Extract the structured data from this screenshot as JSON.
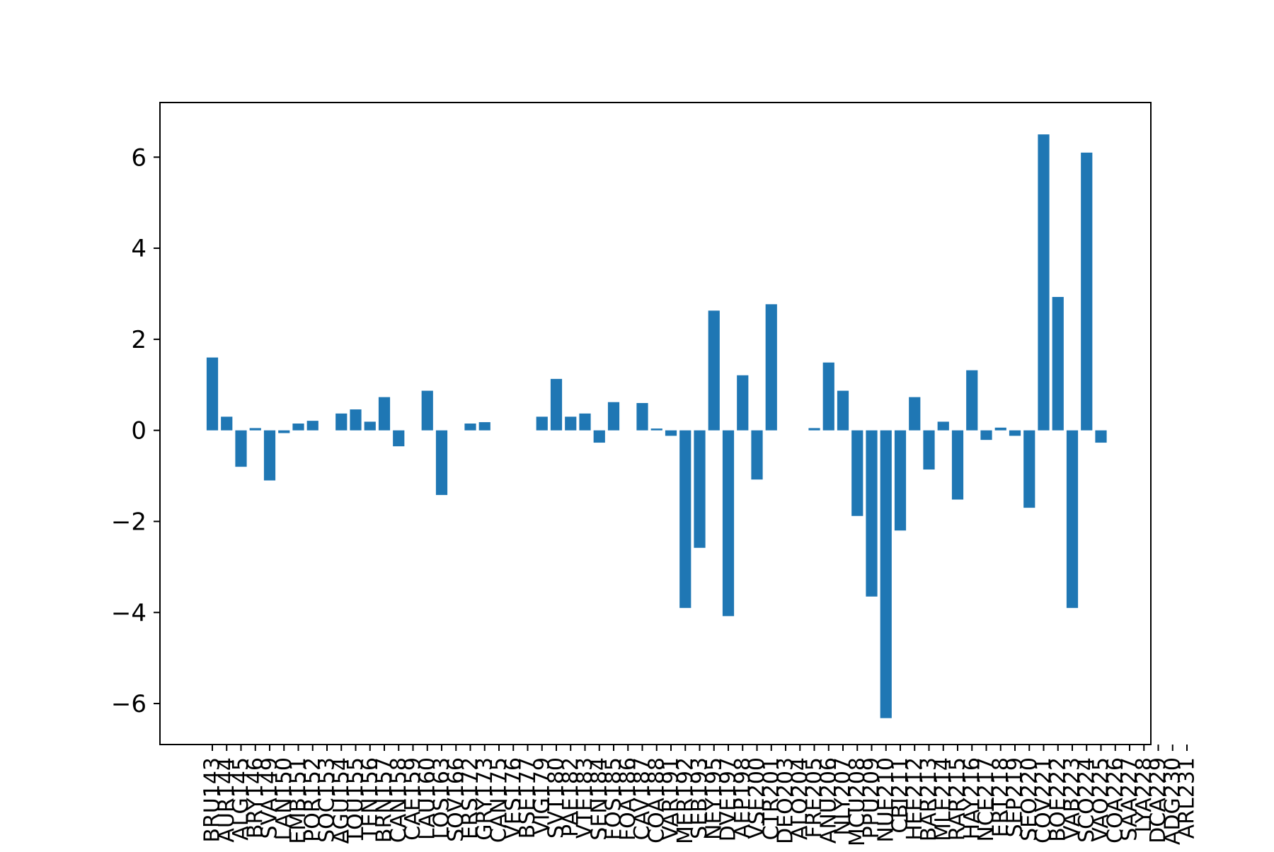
{
  "chart_data": {
    "type": "bar",
    "title": "",
    "xlabel": "",
    "ylabel": "",
    "ylim": [
      -6.9,
      7.2
    ],
    "yticks": [
      -6,
      -4,
      -2,
      0,
      2,
      4,
      6
    ],
    "grid": false,
    "legend": "none",
    "bar_color": "#1f77b4",
    "categories": [
      "BRU143",
      "AUR144",
      "ALG145",
      "BRY146",
      "SVA149",
      "LAN150",
      "EMB151",
      "POR152",
      "SOC153",
      "AGU154",
      "TOU155",
      "TEN156",
      "BRN157",
      "CAN158",
      "CAE159",
      "LAU160",
      "LOS163",
      "SOV166",
      "ERS172",
      "GRY173",
      "CAN175",
      "VES176",
      "BSE177",
      "VIG179",
      "SVT180",
      "PAE182",
      "VTE183",
      "SEN184",
      "FOS185",
      "FOA186",
      "CAV187",
      "COA188",
      "VAR191",
      "MER192",
      "SEB193",
      "NEY195",
      "DVE197",
      "AEP198",
      "VSE200",
      "CTR201",
      "DEO203",
      "ALO204",
      "FRE205",
      "ANU206",
      "NLY207",
      "MCU208",
      "PPU209",
      "NUE210",
      "CBI211",
      "HEE212",
      "BAR213",
      "MLE214",
      "RAR215",
      "HAY216",
      "NCE217",
      "ERT218",
      "SEP219",
      "SEO220",
      "COV221",
      "BOE222",
      "VAB223",
      "SCO224",
      "VAO225",
      "COA226",
      "SAA227",
      "LYA228",
      "DCA229",
      "ADG230",
      "ARL231"
    ],
    "values": [
      1.6,
      0.3,
      -0.8,
      0.05,
      -1.1,
      -0.06,
      0.15,
      0.21,
      0.0,
      0.37,
      0.46,
      0.19,
      0.73,
      -0.35,
      0.0,
      0.87,
      -1.42,
      0.0,
      0.15,
      0.18,
      0.0,
      0.0,
      0.0,
      0.3,
      1.13,
      0.3,
      0.37,
      -0.27,
      0.62,
      0.0,
      0.6,
      0.04,
      -0.12,
      -3.9,
      -2.58,
      2.63,
      -4.08,
      1.21,
      -1.08,
      2.77,
      0.0,
      0.0,
      0.05,
      1.49,
      0.87,
      -1.88,
      -3.65,
      -6.32,
      -2.2,
      0.73,
      -0.86,
      0.19,
      -1.52,
      1.32,
      -0.21,
      0.06,
      -0.12,
      -1.7,
      6.5,
      2.93,
      -3.9,
      6.1,
      -0.27,
      0.0,
      0.0,
      0.0,
      0.0,
      0.0,
      0.0
    ]
  }
}
